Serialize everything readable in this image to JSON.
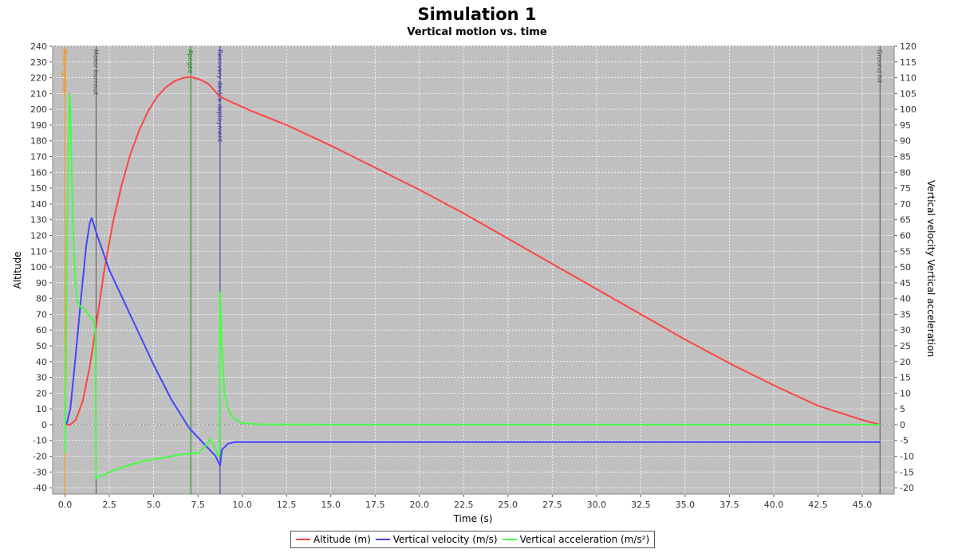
{
  "chart_data": {
    "type": "line",
    "title": "Simulation 1",
    "subtitle": "Vertical motion vs. time",
    "xlabel": "Time (s)",
    "ylabel": "Altitude",
    "y2label": "Vertical velocity Vertical acceleration",
    "xlim": [
      -0.7,
      46.8
    ],
    "ylim": [
      -44,
      240
    ],
    "y2lim": [
      -22,
      120
    ],
    "xticks": [
      0,
      2.5,
      5,
      7.5,
      10,
      12.5,
      15,
      17.5,
      20,
      22.5,
      25,
      27.5,
      30,
      32.5,
      35,
      37.5,
      40,
      42.5,
      45
    ],
    "xtick_labels": [
      "0.0",
      "2.5",
      "5.0",
      "7.5",
      "10.0",
      "12.5",
      "15.0",
      "17.5",
      "20.0",
      "22.5",
      "25.0",
      "27.5",
      "30.0",
      "32.5",
      "35.0",
      "37.5",
      "40.0",
      "42.5",
      "45.0"
    ],
    "yticks": [
      -40,
      -30,
      -20,
      -10,
      0,
      10,
      20,
      30,
      40,
      50,
      60,
      70,
      80,
      90,
      100,
      110,
      120,
      130,
      140,
      150,
      160,
      170,
      180,
      190,
      200,
      210,
      220,
      230,
      240
    ],
    "y2ticks": [
      -20,
      -15,
      -10,
      -5,
      0,
      5,
      10,
      15,
      20,
      25,
      30,
      35,
      40,
      45,
      50,
      55,
      60,
      65,
      70,
      75,
      80,
      85,
      90,
      95,
      100,
      105,
      110,
      115,
      120
    ],
    "grid": true,
    "legend_position": "bottom",
    "background": "#c0c0c0",
    "events": [
      {
        "label": "Motor ignition",
        "t": 0.0,
        "color": "#ff8c00"
      },
      {
        "label": "Motor burnout",
        "t": 1.75,
        "color": "#555555"
      },
      {
        "label": "Apogee",
        "t": 7.1,
        "color": "#1a8a1a"
      },
      {
        "label": "Recovery device deployment",
        "t": 8.75,
        "color": "#3333aa"
      },
      {
        "label": "Ground hit",
        "t": 46.0,
        "color": "#555555"
      }
    ],
    "series": [
      {
        "name": "Altitude (m)",
        "axis": "left",
        "color": "#ff4444",
        "points": [
          [
            0,
            0
          ],
          [
            0.3,
            0
          ],
          [
            0.6,
            3
          ],
          [
            1.0,
            15
          ],
          [
            1.4,
            37
          ],
          [
            1.75,
            62
          ],
          [
            2.2,
            97
          ],
          [
            2.7,
            128
          ],
          [
            3.2,
            152
          ],
          [
            3.7,
            172
          ],
          [
            4.2,
            187
          ],
          [
            4.7,
            199
          ],
          [
            5.2,
            208
          ],
          [
            5.7,
            214
          ],
          [
            6.2,
            218
          ],
          [
            6.7,
            220
          ],
          [
            7.1,
            220.5
          ],
          [
            7.6,
            219
          ],
          [
            8.1,
            216
          ],
          [
            8.75,
            208
          ],
          [
            9.5,
            204
          ],
          [
            10.5,
            199
          ],
          [
            12.5,
            190
          ],
          [
            15,
            177
          ],
          [
            17.5,
            163
          ],
          [
            20,
            149
          ],
          [
            22.5,
            134
          ],
          [
            25,
            118
          ],
          [
            27.5,
            102
          ],
          [
            30,
            86
          ],
          [
            32.5,
            70
          ],
          [
            35,
            54
          ],
          [
            37.5,
            39
          ],
          [
            40,
            25
          ],
          [
            42.5,
            12
          ],
          [
            45,
            3
          ],
          [
            46,
            0
          ]
        ]
      },
      {
        "name": "Vertical velocity (m/s)",
        "axis": "right",
        "color": "#4444ff",
        "points": [
          [
            0,
            0
          ],
          [
            0.1,
            0.5
          ],
          [
            0.3,
            5
          ],
          [
            0.6,
            22
          ],
          [
            0.9,
            40
          ],
          [
            1.2,
            57
          ],
          [
            1.4,
            64
          ],
          [
            1.5,
            65.5
          ],
          [
            1.7,
            62
          ],
          [
            2.0,
            57
          ],
          [
            2.5,
            49
          ],
          [
            3.0,
            43
          ],
          [
            3.5,
            37
          ],
          [
            4.0,
            31
          ],
          [
            4.5,
            25
          ],
          [
            5.0,
            19
          ],
          [
            5.5,
            13.5
          ],
          [
            6.0,
            8
          ],
          [
            6.5,
            3.5
          ],
          [
            7.0,
            -1
          ],
          [
            7.5,
            -4
          ],
          [
            8.0,
            -7
          ],
          [
            8.5,
            -10
          ],
          [
            8.75,
            -13
          ],
          [
            8.85,
            -8
          ],
          [
            9.2,
            -6
          ],
          [
            9.6,
            -5.5
          ],
          [
            10.2,
            -5.5
          ],
          [
            11,
            -5.5
          ],
          [
            15,
            -5.5
          ],
          [
            20,
            -5.5
          ],
          [
            25,
            -5.5
          ],
          [
            30,
            -5.5
          ],
          [
            35,
            -5.5
          ],
          [
            40,
            -5.5
          ],
          [
            46,
            -5.5
          ]
        ]
      },
      {
        "name": "Vertical acceleration (m/s²)",
        "axis": "right",
        "color": "#44ff44",
        "points": [
          [
            0,
            -9
          ],
          [
            0.05,
            20
          ],
          [
            0.12,
            60
          ],
          [
            0.2,
            90
          ],
          [
            0.25,
            105
          ],
          [
            0.3,
            100
          ],
          [
            0.4,
            75
          ],
          [
            0.5,
            55
          ],
          [
            0.6,
            44
          ],
          [
            0.7,
            39
          ],
          [
            0.85,
            37.5
          ],
          [
            1.0,
            37
          ],
          [
            1.3,
            35
          ],
          [
            1.6,
            33
          ],
          [
            1.72,
            30
          ],
          [
            1.75,
            -17
          ],
          [
            2.5,
            -15
          ],
          [
            3.5,
            -13
          ],
          [
            4.5,
            -11.5
          ],
          [
            5.5,
            -10.5
          ],
          [
            6.5,
            -9.5
          ],
          [
            7.5,
            -9
          ],
          [
            7.9,
            -7
          ],
          [
            8.2,
            -4.5
          ],
          [
            8.4,
            -6.5
          ],
          [
            8.6,
            -9.5
          ],
          [
            8.72,
            -10
          ],
          [
            8.75,
            42
          ],
          [
            8.85,
            25
          ],
          [
            9.0,
            10
          ],
          [
            9.2,
            5
          ],
          [
            9.5,
            2
          ],
          [
            10,
            0.5
          ],
          [
            11,
            0.1
          ],
          [
            15,
            0
          ],
          [
            20,
            0
          ],
          [
            25,
            0
          ],
          [
            30,
            0
          ],
          [
            35,
            0
          ],
          [
            40,
            0
          ],
          [
            46,
            0
          ]
        ]
      }
    ]
  }
}
